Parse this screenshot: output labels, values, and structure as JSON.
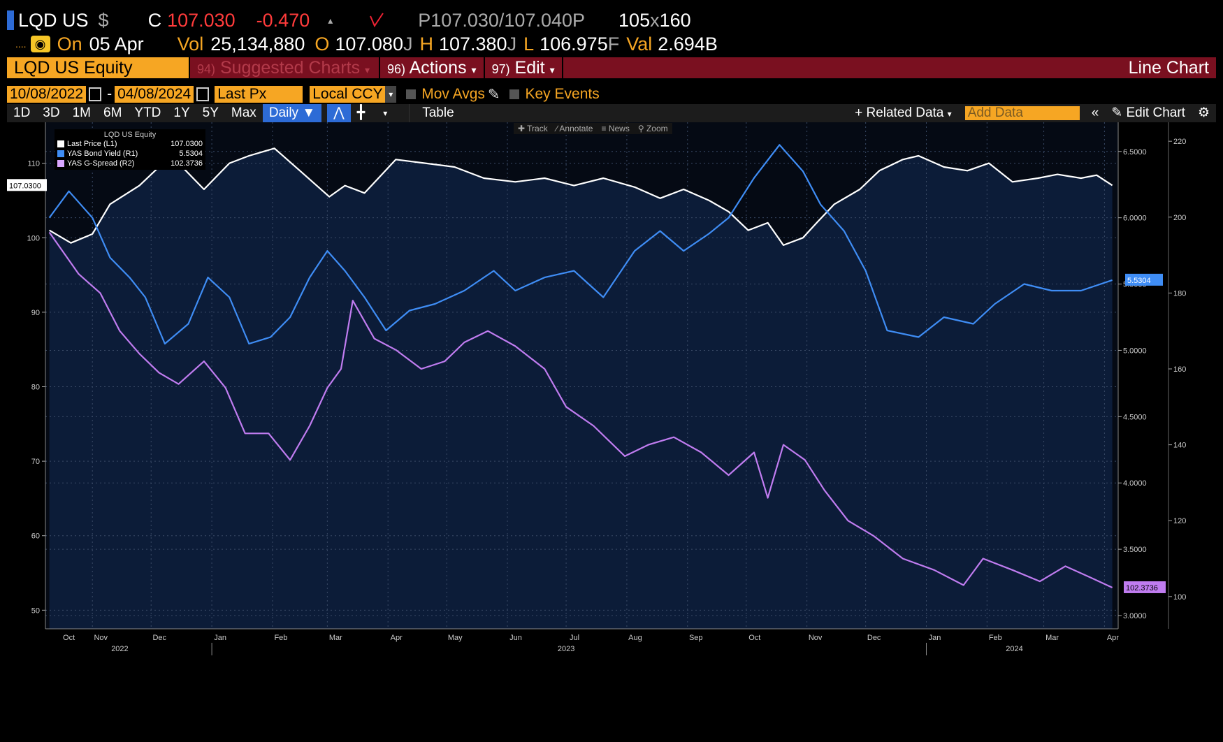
{
  "header": {
    "ticker": "LQD US",
    "currency_sym": "$",
    "c_label": "C",
    "last": "107.030",
    "change": "-0.470",
    "bidask_p1": "P",
    "bid": "107.030",
    "slash": "/",
    "ask": "107.040",
    "bidask_p2": "P",
    "size": "105",
    "size_x": "x",
    "size2": "160",
    "dots": "....",
    "on_label": "On",
    "date": "05 Apr",
    "vol_label": "Vol",
    "volume": "25,134,880",
    "o_label": "O",
    "open": "107.080",
    "open_flag": "J",
    "h_label": "H",
    "high": "107.380",
    "high_flag": "J",
    "l_label": "L",
    "low": "106.975",
    "low_flag": "F",
    "val_label": "Val",
    "value": "2.694B"
  },
  "menubar": {
    "security": "LQD US Equity",
    "suggested_num": "94)",
    "suggested": "Suggested Charts",
    "actions_num": "96)",
    "actions": "Actions",
    "edit_num": "97)",
    "edit": "Edit",
    "chart_name": "Line Chart"
  },
  "controls": {
    "start_date": "10/08/2022",
    "dash": "-",
    "end_date": "04/08/2024",
    "field": "Last Px",
    "currency": "Local CCY",
    "mov_avgs": "Mov Avgs",
    "key_events": "Key Events"
  },
  "toolbar": {
    "periods": [
      "1D",
      "3D",
      "1M",
      "6M",
      "YTD",
      "1Y",
      "5Y",
      "Max"
    ],
    "frequency": "Daily",
    "table": "Table",
    "related": "+ Related Data",
    "add_data": "Add Data",
    "edit_chart": "Edit Chart"
  },
  "subtoolbar": {
    "track": "Track",
    "annotate": "Annotate",
    "news": "News",
    "zoom": "Zoom"
  },
  "legend": {
    "title": "LQD US Equity",
    "rows": [
      {
        "name": "Last Price  (L1)",
        "value": "107.0300",
        "color": "#ffffff"
      },
      {
        "name": "YAS Bond Yield  (R1)",
        "value": "5.5304",
        "color": "#3f8df5"
      },
      {
        "name": "YAS G-Spread  (R2)",
        "value": "102.3736",
        "color": "#d9a6ff"
      }
    ]
  },
  "colors": {
    "bg": "#000000",
    "plot": "#0c1c38",
    "amber": "#f6a623",
    "menu": "#7a1020",
    "price": "#ffffff",
    "yield": "#3f8df5",
    "spread": "#c07cf0"
  },
  "chart_data": {
    "type": "line",
    "x_range": [
      "2022-10-08",
      "2024-04-08"
    ],
    "grid": true,
    "legend_position": "top-left",
    "month_labels": [
      "Oct",
      "Nov",
      "Dec",
      "Jan",
      "Feb",
      "Mar",
      "Apr",
      "May",
      "Jun",
      "Jul",
      "Aug",
      "Sep",
      "Oct",
      "Nov",
      "Dec",
      "Jan",
      "Feb",
      "Mar",
      "Apr"
    ],
    "year_labels": [
      "2022",
      "2023",
      "2024"
    ],
    "left_axis": {
      "ticks": [
        50,
        60,
        70,
        80,
        90,
        100,
        110
      ],
      "range": [
        47.5,
        115.5
      ]
    },
    "right_axis_yield": {
      "ticks": [
        "3.0000",
        "3.5000",
        "4.0000",
        "4.5000",
        "5.0000",
        "5.5000",
        "6.0000",
        "6.5000"
      ],
      "range": [
        2.9,
        6.72
      ]
    },
    "right_axis_spread": {
      "ticks": [
        100,
        120,
        140,
        160,
        180,
        200,
        220
      ],
      "range": [
        91.5,
        225
      ]
    },
    "current_labels": {
      "price": "107.0300",
      "yield": "5.5304",
      "spread": "102.3736"
    },
    "series": [
      {
        "name": "Last Price  (L1)",
        "axis": "left",
        "points": [
          [
            "2022-10-10",
            101.0
          ],
          [
            "2022-10-21",
            99.3
          ],
          [
            "2022-11-01",
            100.5
          ],
          [
            "2022-11-10",
            104.5
          ],
          [
            "2022-11-25",
            107.0
          ],
          [
            "2022-12-05",
            109.5
          ],
          [
            "2022-12-15",
            110.0
          ],
          [
            "2022-12-28",
            106.5
          ],
          [
            "2023-01-10",
            110.0
          ],
          [
            "2023-01-20",
            111.0
          ],
          [
            "2023-02-02",
            112.0
          ],
          [
            "2023-02-15",
            109.0
          ],
          [
            "2023-03-02",
            105.5
          ],
          [
            "2023-03-10",
            107.0
          ],
          [
            "2023-03-20",
            106.0
          ],
          [
            "2023-04-05",
            110.5
          ],
          [
            "2023-04-20",
            110.0
          ],
          [
            "2023-05-05",
            109.5
          ],
          [
            "2023-05-20",
            108.0
          ],
          [
            "2023-06-05",
            107.5
          ],
          [
            "2023-06-20",
            108.0
          ],
          [
            "2023-07-05",
            107.0
          ],
          [
            "2023-07-20",
            108.0
          ],
          [
            "2023-08-05",
            106.8
          ],
          [
            "2023-08-18",
            105.3
          ],
          [
            "2023-08-30",
            106.5
          ],
          [
            "2023-09-12",
            105.0
          ],
          [
            "2023-09-22",
            103.5
          ],
          [
            "2023-10-02",
            101.0
          ],
          [
            "2023-10-12",
            102.0
          ],
          [
            "2023-10-20",
            99.0
          ],
          [
            "2023-10-30",
            100.0
          ],
          [
            "2023-11-06",
            102.0
          ],
          [
            "2023-11-15",
            104.5
          ],
          [
            "2023-11-28",
            106.5
          ],
          [
            "2023-12-08",
            109.0
          ],
          [
            "2023-12-20",
            110.5
          ],
          [
            "2023-12-28",
            111.0
          ],
          [
            "2024-01-10",
            109.5
          ],
          [
            "2024-01-22",
            109.0
          ],
          [
            "2024-02-02",
            110.0
          ],
          [
            "2024-02-14",
            107.5
          ],
          [
            "2024-02-27",
            108.0
          ],
          [
            "2024-03-08",
            108.5
          ],
          [
            "2024-03-20",
            108.0
          ],
          [
            "2024-03-28",
            108.4
          ],
          [
            "2024-04-05",
            107.03
          ]
        ]
      },
      {
        "name": "YAS Bond Yield  (R1)",
        "axis": "right_yield",
        "points": [
          [
            "2022-10-10",
            6.0
          ],
          [
            "2022-10-20",
            6.2
          ],
          [
            "2022-11-01",
            6.0
          ],
          [
            "2022-11-10",
            5.7
          ],
          [
            "2022-11-20",
            5.55
          ],
          [
            "2022-11-28",
            5.4
          ],
          [
            "2022-12-08",
            5.05
          ],
          [
            "2022-12-20",
            5.2
          ],
          [
            "2022-12-30",
            5.55
          ],
          [
            "2023-01-10",
            5.4
          ],
          [
            "2023-01-20",
            5.05
          ],
          [
            "2023-01-31",
            5.1
          ],
          [
            "2023-02-10",
            5.25
          ],
          [
            "2023-02-20",
            5.55
          ],
          [
            "2023-03-01",
            5.75
          ],
          [
            "2023-03-10",
            5.6
          ],
          [
            "2023-03-20",
            5.4
          ],
          [
            "2023-03-31",
            5.15
          ],
          [
            "2023-04-12",
            5.3
          ],
          [
            "2023-04-25",
            5.35
          ],
          [
            "2023-05-10",
            5.45
          ],
          [
            "2023-05-25",
            5.6
          ],
          [
            "2023-06-05",
            5.45
          ],
          [
            "2023-06-20",
            5.55
          ],
          [
            "2023-07-05",
            5.6
          ],
          [
            "2023-07-20",
            5.4
          ],
          [
            "2023-08-05",
            5.75
          ],
          [
            "2023-08-18",
            5.9
          ],
          [
            "2023-08-30",
            5.75
          ],
          [
            "2023-09-12",
            5.88
          ],
          [
            "2023-09-22",
            6.0
          ],
          [
            "2023-10-05",
            6.3
          ],
          [
            "2023-10-18",
            6.55
          ],
          [
            "2023-10-30",
            6.35
          ],
          [
            "2023-11-08",
            6.1
          ],
          [
            "2023-11-20",
            5.9
          ],
          [
            "2023-12-01",
            5.6
          ],
          [
            "2023-12-12",
            5.15
          ],
          [
            "2023-12-28",
            5.1
          ],
          [
            "2024-01-10",
            5.25
          ],
          [
            "2024-01-25",
            5.2
          ],
          [
            "2024-02-05",
            5.35
          ],
          [
            "2024-02-20",
            5.5
          ],
          [
            "2024-03-05",
            5.45
          ],
          [
            "2024-03-20",
            5.45
          ],
          [
            "2024-04-05",
            5.53
          ]
        ]
      },
      {
        "name": "YAS G-Spread  (R2)",
        "axis": "right_spread",
        "points": [
          [
            "2022-10-10",
            196
          ],
          [
            "2022-10-25",
            185
          ],
          [
            "2022-11-05",
            180
          ],
          [
            "2022-11-15",
            170
          ],
          [
            "2022-11-25",
            164
          ],
          [
            "2022-12-05",
            159
          ],
          [
            "2022-12-15",
            156
          ],
          [
            "2022-12-28",
            162
          ],
          [
            "2023-01-08",
            155
          ],
          [
            "2023-01-18",
            143
          ],
          [
            "2023-01-30",
            143
          ],
          [
            "2023-02-10",
            136
          ],
          [
            "2023-02-20",
            145
          ],
          [
            "2023-03-01",
            155
          ],
          [
            "2023-03-08",
            160
          ],
          [
            "2023-03-14",
            178
          ],
          [
            "2023-03-25",
            168
          ],
          [
            "2023-04-05",
            165
          ],
          [
            "2023-04-18",
            160
          ],
          [
            "2023-04-30",
            162
          ],
          [
            "2023-05-10",
            167
          ],
          [
            "2023-05-22",
            170
          ],
          [
            "2023-06-05",
            166
          ],
          [
            "2023-06-20",
            160
          ],
          [
            "2023-07-01",
            150
          ],
          [
            "2023-07-15",
            145
          ],
          [
            "2023-07-31",
            137
          ],
          [
            "2023-08-12",
            140
          ],
          [
            "2023-08-25",
            142
          ],
          [
            "2023-09-08",
            138
          ],
          [
            "2023-09-22",
            132
          ],
          [
            "2023-10-05",
            138
          ],
          [
            "2023-10-12",
            126
          ],
          [
            "2023-10-20",
            140
          ],
          [
            "2023-10-31",
            136
          ],
          [
            "2023-11-10",
            128
          ],
          [
            "2023-11-22",
            120
          ],
          [
            "2023-12-05",
            116
          ],
          [
            "2023-12-20",
            110
          ],
          [
            "2024-01-05",
            107
          ],
          [
            "2024-01-20",
            103
          ],
          [
            "2024-01-30",
            110
          ],
          [
            "2024-02-14",
            107
          ],
          [
            "2024-02-28",
            104
          ],
          [
            "2024-03-12",
            108
          ],
          [
            "2024-03-25",
            105
          ],
          [
            "2024-04-05",
            102.37
          ]
        ]
      }
    ]
  }
}
